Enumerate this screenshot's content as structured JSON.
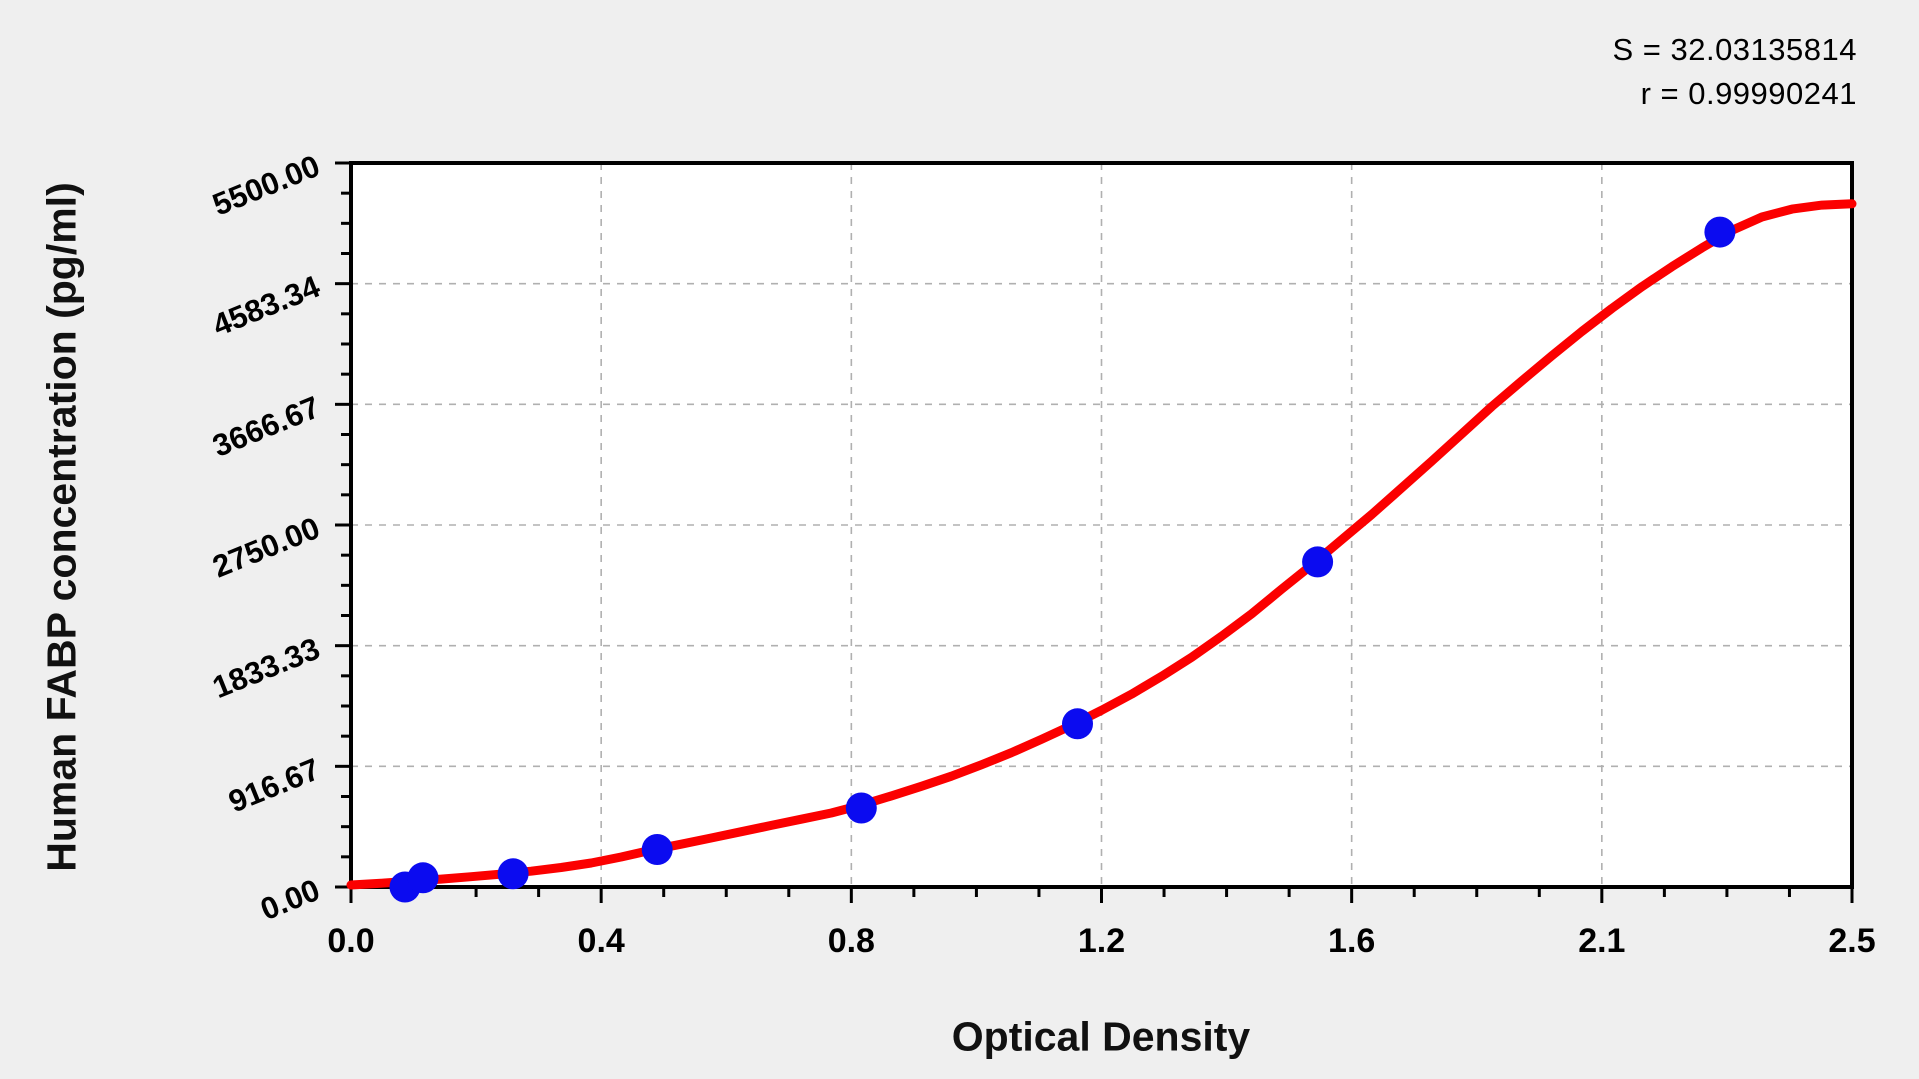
{
  "chart_data": {
    "type": "scatter",
    "title": "",
    "xlabel": "Optical Density",
    "ylabel": "Human FABP concentration (pg/ml)",
    "xlim": [
      0,
      2.5
    ],
    "ylim": [
      0,
      5500
    ],
    "grid": "dashed gray lines at every major tick, plot interior white",
    "legend": "none",
    "x_tick_labels": [
      "0.0",
      "0.4",
      "0.8",
      "1.2",
      "1.6",
      "2.1",
      "2.5"
    ],
    "y_tick_labels": [
      "0.00",
      "916.67",
      "1833.33",
      "2750.00",
      "3666.67",
      "4583.34",
      "5500.00"
    ],
    "minor_ticks_per_interval": 3,
    "annotations": {
      "s": "S = 32.03135814",
      "r": "r = 0.99990241"
    },
    "series": [
      {
        "name": "standard-points",
        "marker": "circle",
        "points": [
          {
            "od": 0.09,
            "conc": 0
          },
          {
            "od": 0.12,
            "conc": 70
          },
          {
            "od": 0.27,
            "conc": 100
          },
          {
            "od": 0.51,
            "conc": 285
          },
          {
            "od": 0.85,
            "conc": 600
          },
          {
            "od": 1.21,
            "conc": 1240
          },
          {
            "od": 1.61,
            "conc": 2470
          },
          {
            "od": 2.28,
            "conc": 4975
          }
        ]
      }
    ],
    "fit_curve": {
      "name": "sigmoid-fit",
      "samples": [
        [
          0.0,
          15
        ],
        [
          0.05,
          28
        ],
        [
          0.1,
          45
        ],
        [
          0.15,
          60
        ],
        [
          0.2,
          78
        ],
        [
          0.25,
          98
        ],
        [
          0.3,
          120
        ],
        [
          0.35,
          148
        ],
        [
          0.4,
          182
        ],
        [
          0.45,
          228
        ],
        [
          0.5,
          280
        ],
        [
          0.55,
          325
        ],
        [
          0.6,
          372
        ],
        [
          0.65,
          420
        ],
        [
          0.7,
          468
        ],
        [
          0.75,
          515
        ],
        [
          0.8,
          562
        ],
        [
          0.85,
          622
        ],
        [
          0.9,
          692
        ],
        [
          0.95,
          765
        ],
        [
          1.0,
          842
        ],
        [
          1.05,
          928
        ],
        [
          1.1,
          1020
        ],
        [
          1.15,
          1122
        ],
        [
          1.2,
          1228
        ],
        [
          1.25,
          1342
        ],
        [
          1.3,
          1465
        ],
        [
          1.35,
          1600
        ],
        [
          1.4,
          1745
        ],
        [
          1.45,
          1905
        ],
        [
          1.5,
          2075
        ],
        [
          1.55,
          2262
        ],
        [
          1.6,
          2445
        ],
        [
          1.65,
          2638
        ],
        [
          1.7,
          2830
        ],
        [
          1.75,
          3032
        ],
        [
          1.8,
          3235
        ],
        [
          1.85,
          3442
        ],
        [
          1.9,
          3650
        ],
        [
          1.95,
          3845
        ],
        [
          2.0,
          4035
        ],
        [
          2.05,
          4220
        ],
        [
          2.1,
          4395
        ],
        [
          2.15,
          4560
        ],
        [
          2.2,
          4712
        ],
        [
          2.25,
          4855
        ],
        [
          2.3,
          4988
        ],
        [
          2.35,
          5090
        ],
        [
          2.4,
          5150
        ],
        [
          2.45,
          5180
        ],
        [
          2.5,
          5190
        ]
      ]
    },
    "colors": {
      "curve": "#fb0000",
      "points": "#0b0bf0",
      "grid": "#b0b0b0",
      "axis": "#000000",
      "plot_bg": "#ffffff",
      "page_bg": "#efefef",
      "text": "#000000"
    }
  }
}
